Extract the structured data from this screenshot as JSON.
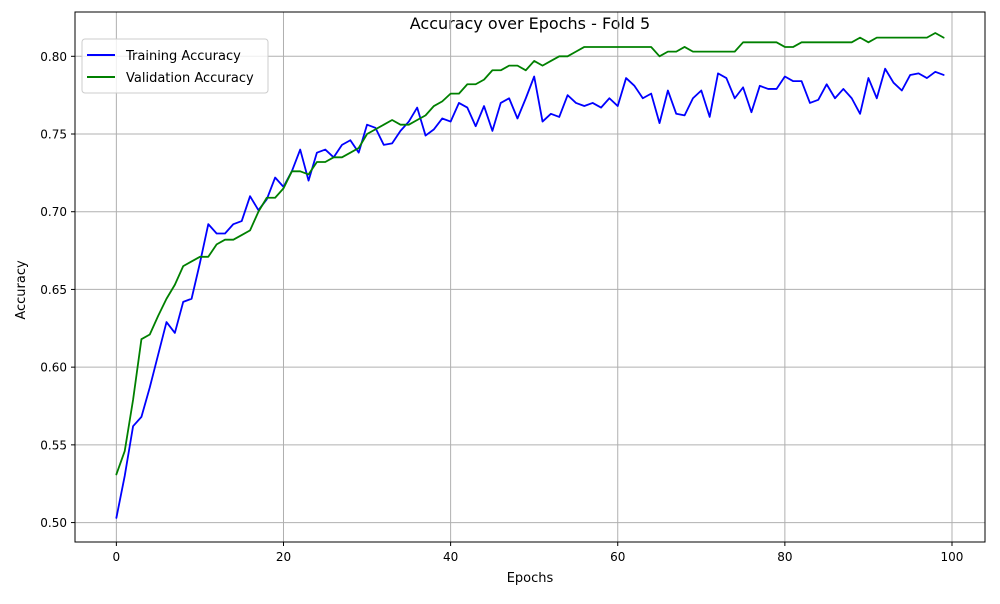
{
  "chart_data": {
    "type": "line",
    "title": "Accuracy over Epochs - Fold 5",
    "xlabel": "Epochs",
    "ylabel": "Accuracy",
    "xlim": [
      -4.95,
      103.95
    ],
    "ylim": [
      0.4875,
      0.8285
    ],
    "xticks": [
      0,
      20,
      40,
      60,
      80,
      100
    ],
    "yticks": [
      0.5,
      0.55,
      0.6,
      0.65,
      0.7,
      0.75,
      0.8
    ],
    "xtick_labels": [
      "0",
      "20",
      "40",
      "60",
      "80",
      "100"
    ],
    "ytick_labels": [
      "0.50",
      "0.55",
      "0.60",
      "0.65",
      "0.70",
      "0.75",
      "0.80"
    ],
    "grid": true,
    "legend_position": "upper-left",
    "series": [
      {
        "name": "Training Accuracy",
        "color": "#0000ff",
        "values": [
          0.503,
          0.53,
          0.562,
          0.568,
          0.587,
          0.608,
          0.629,
          0.622,
          0.642,
          0.644,
          0.667,
          0.692,
          0.686,
          0.686,
          0.692,
          0.694,
          0.71,
          0.701,
          0.708,
          0.722,
          0.716,
          0.726,
          0.74,
          0.72,
          0.738,
          0.74,
          0.735,
          0.743,
          0.746,
          0.738,
          0.756,
          0.754,
          0.743,
          0.744,
          0.752,
          0.758,
          0.767,
          0.749,
          0.753,
          0.76,
          0.758,
          0.77,
          0.767,
          0.755,
          0.768,
          0.752,
          0.77,
          0.773,
          0.76,
          0.773,
          0.787,
          0.758,
          0.763,
          0.761,
          0.775,
          0.77,
          0.768,
          0.77,
          0.767,
          0.773,
          0.768,
          0.786,
          0.781,
          0.773,
          0.776,
          0.757,
          0.778,
          0.763,
          0.762,
          0.773,
          0.778,
          0.761,
          0.789,
          0.786,
          0.773,
          0.78,
          0.764,
          0.781,
          0.779,
          0.779,
          0.787,
          0.784,
          0.784,
          0.77,
          0.772,
          0.782,
          0.773,
          0.779,
          0.773,
          0.763,
          0.786,
          0.773,
          0.792,
          0.783,
          0.778,
          0.788,
          0.789,
          0.786,
          0.79,
          0.788
        ]
      },
      {
        "name": "Validation Accuracy",
        "color": "#008000",
        "values": [
          0.531,
          0.546,
          0.579,
          0.618,
          0.621,
          0.633,
          0.644,
          0.653,
          0.665,
          0.668,
          0.671,
          0.671,
          0.679,
          0.682,
          0.682,
          0.685,
          0.688,
          0.7,
          0.709,
          0.709,
          0.715,
          0.726,
          0.726,
          0.724,
          0.732,
          0.732,
          0.735,
          0.735,
          0.738,
          0.741,
          0.75,
          0.753,
          0.756,
          0.759,
          0.756,
          0.756,
          0.759,
          0.762,
          0.768,
          0.771,
          0.776,
          0.776,
          0.782,
          0.782,
          0.785,
          0.791,
          0.791,
          0.794,
          0.794,
          0.791,
          0.797,
          0.794,
          0.797,
          0.8,
          0.8,
          0.803,
          0.806,
          0.806,
          0.806,
          0.806,
          0.806,
          0.806,
          0.806,
          0.806,
          0.806,
          0.8,
          0.803,
          0.803,
          0.806,
          0.803,
          0.803,
          0.803,
          0.803,
          0.803,
          0.803,
          0.809,
          0.809,
          0.809,
          0.809,
          0.809,
          0.806,
          0.806,
          0.809,
          0.809,
          0.809,
          0.809,
          0.809,
          0.809,
          0.809,
          0.812,
          0.809,
          0.812,
          0.812,
          0.812,
          0.812,
          0.812,
          0.812,
          0.812,
          0.815,
          0.812
        ]
      }
    ]
  }
}
